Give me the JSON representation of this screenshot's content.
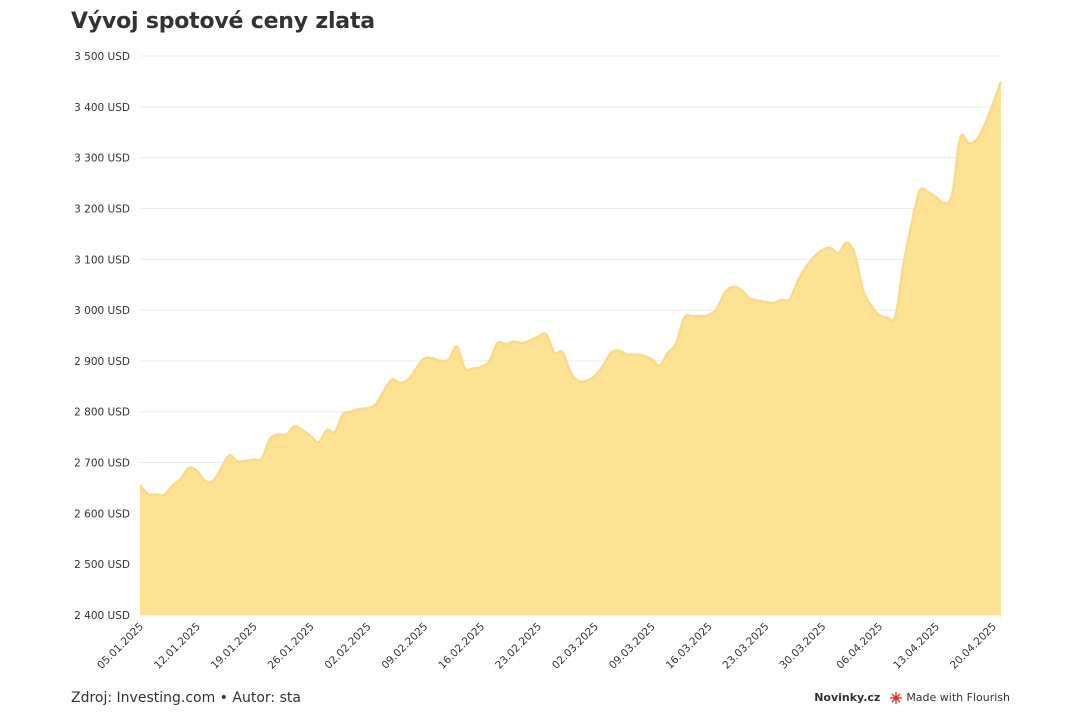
{
  "footer": {
    "source": "Zdroj: Investing.com • Autor: sta",
    "brand": "Novinky.cz",
    "flourish": "Made with Flourish"
  },
  "colors": {
    "area": "#fde294",
    "line": "#f9d98a",
    "grid": "#ececec",
    "text": "#333333",
    "flourish_red": "#e0342c"
  },
  "chart_data": {
    "type": "area",
    "title": "Vývoj spotové ceny zlata",
    "y_tick_suffix": " USD",
    "ylim": [
      2400,
      3500
    ],
    "yticks": [
      2400,
      2500,
      2600,
      2700,
      2800,
      2900,
      3000,
      3100,
      3200,
      3300,
      3400,
      3500
    ],
    "ytick_labels": [
      "2 400 USD",
      "2 500 USD",
      "2 600 USD",
      "2 700 USD",
      "2 800 USD",
      "2 900 USD",
      "3 000 USD",
      "3 100 USD",
      "3 200 USD",
      "3 300 USD",
      "3 400 USD",
      "3 500 USD"
    ],
    "xlim": [
      "2025-01-05",
      "2025-04-21"
    ],
    "xticks": [
      "2025-01-05",
      "2025-01-12",
      "2025-01-19",
      "2025-01-26",
      "2025-02-02",
      "2025-02-09",
      "2025-02-16",
      "2025-02-23",
      "2025-03-02",
      "2025-03-09",
      "2025-03-16",
      "2025-03-23",
      "2025-03-30",
      "2025-04-06",
      "2025-04-13",
      "2025-04-20"
    ],
    "xtick_labels": [
      "05.01.2025",
      "12.01.2025",
      "19.01.2025",
      "26.01.2025",
      "02.02.2025",
      "09.02.2025",
      "16.02.2025",
      "23.02.2025",
      "02.03.2025",
      "09.03.2025",
      "16.03.2025",
      "23.03.2025",
      "30.03.2025",
      "06.04.2025",
      "13.04.2025",
      "20.04.2025"
    ],
    "grid": true,
    "points": [
      [
        "2025-01-05",
        2655
      ],
      [
        "2025-01-06",
        2638
      ],
      [
        "2025-01-07",
        2637
      ],
      [
        "2025-01-08",
        2636
      ],
      [
        "2025-01-09",
        2654
      ],
      [
        "2025-01-10",
        2668
      ],
      [
        "2025-01-11",
        2689
      ],
      [
        "2025-01-12",
        2684
      ],
      [
        "2025-01-13",
        2664
      ],
      [
        "2025-01-14",
        2664
      ],
      [
        "2025-01-15",
        2689
      ],
      [
        "2025-01-16",
        2714
      ],
      [
        "2025-01-17",
        2702
      ],
      [
        "2025-01-18",
        2703
      ],
      [
        "2025-01-19",
        2706
      ],
      [
        "2025-01-20",
        2708
      ],
      [
        "2025-01-21",
        2746
      ],
      [
        "2025-01-22",
        2755
      ],
      [
        "2025-01-23",
        2755
      ],
      [
        "2025-01-24",
        2771
      ],
      [
        "2025-01-25",
        2764
      ],
      [
        "2025-01-26",
        2752
      ],
      [
        "2025-01-27",
        2740
      ],
      [
        "2025-01-28",
        2764
      ],
      [
        "2025-01-29",
        2760
      ],
      [
        "2025-01-30",
        2795
      ],
      [
        "2025-01-31",
        2800
      ],
      [
        "2025-02-01",
        2805
      ],
      [
        "2025-02-02",
        2807
      ],
      [
        "2025-02-03",
        2814
      ],
      [
        "2025-02-04",
        2840
      ],
      [
        "2025-02-05",
        2863
      ],
      [
        "2025-02-06",
        2857
      ],
      [
        "2025-02-07",
        2863
      ],
      [
        "2025-02-08",
        2885
      ],
      [
        "2025-02-09",
        2905
      ],
      [
        "2025-02-10",
        2905
      ],
      [
        "2025-02-11",
        2900
      ],
      [
        "2025-02-12",
        2903
      ],
      [
        "2025-02-13",
        2928
      ],
      [
        "2025-02-14",
        2885
      ],
      [
        "2025-02-15",
        2885
      ],
      [
        "2025-02-16",
        2888
      ],
      [
        "2025-02-17",
        2899
      ],
      [
        "2025-02-18",
        2935
      ],
      [
        "2025-02-19",
        2933
      ],
      [
        "2025-02-20",
        2938
      ],
      [
        "2025-02-21",
        2935
      ],
      [
        "2025-02-22",
        2940
      ],
      [
        "2025-02-23",
        2948
      ],
      [
        "2025-02-24",
        2952
      ],
      [
        "2025-02-25",
        2916
      ],
      [
        "2025-02-26",
        2917
      ],
      [
        "2025-02-27",
        2877
      ],
      [
        "2025-02-28",
        2860
      ],
      [
        "2025-03-01",
        2861
      ],
      [
        "2025-03-02",
        2871
      ],
      [
        "2025-03-03",
        2890
      ],
      [
        "2025-03-04",
        2916
      ],
      [
        "2025-03-05",
        2920
      ],
      [
        "2025-03-06",
        2912
      ],
      [
        "2025-03-07",
        2912
      ],
      [
        "2025-03-08",
        2910
      ],
      [
        "2025-03-09",
        2903
      ],
      [
        "2025-03-10",
        2891
      ],
      [
        "2025-03-11",
        2916
      ],
      [
        "2025-03-12",
        2934
      ],
      [
        "2025-03-13",
        2985
      ],
      [
        "2025-03-14",
        2988
      ],
      [
        "2025-03-15",
        2988
      ],
      [
        "2025-03-16",
        2990
      ],
      [
        "2025-03-17",
        3003
      ],
      [
        "2025-03-18",
        3034
      ],
      [
        "2025-03-19",
        3046
      ],
      [
        "2025-03-20",
        3040
      ],
      [
        "2025-03-21",
        3024
      ],
      [
        "2025-03-22",
        3019
      ],
      [
        "2025-03-23",
        3016
      ],
      [
        "2025-03-24",
        3014
      ],
      [
        "2025-03-25",
        3020
      ],
      [
        "2025-03-26",
        3021
      ],
      [
        "2025-03-27",
        3058
      ],
      [
        "2025-03-28",
        3085
      ],
      [
        "2025-03-29",
        3105
      ],
      [
        "2025-03-30",
        3118
      ],
      [
        "2025-03-31",
        3122
      ],
      [
        "2025-04-01",
        3112
      ],
      [
        "2025-04-02",
        3133
      ],
      [
        "2025-04-03",
        3110
      ],
      [
        "2025-04-04",
        3040
      ],
      [
        "2025-04-05",
        3009
      ],
      [
        "2025-04-06",
        2990
      ],
      [
        "2025-04-07",
        2985
      ],
      [
        "2025-04-08",
        2988
      ],
      [
        "2025-04-09",
        3090
      ],
      [
        "2025-04-10",
        3170
      ],
      [
        "2025-04-11",
        3235
      ],
      [
        "2025-04-12",
        3232
      ],
      [
        "2025-04-13",
        3222
      ],
      [
        "2025-04-14",
        3210
      ],
      [
        "2025-04-15",
        3228
      ],
      [
        "2025-04-16",
        3340
      ],
      [
        "2025-04-17",
        3328
      ],
      [
        "2025-04-18",
        3335
      ],
      [
        "2025-04-19",
        3365
      ],
      [
        "2025-04-20",
        3405
      ],
      [
        "2025-04-21",
        3450
      ]
    ]
  }
}
